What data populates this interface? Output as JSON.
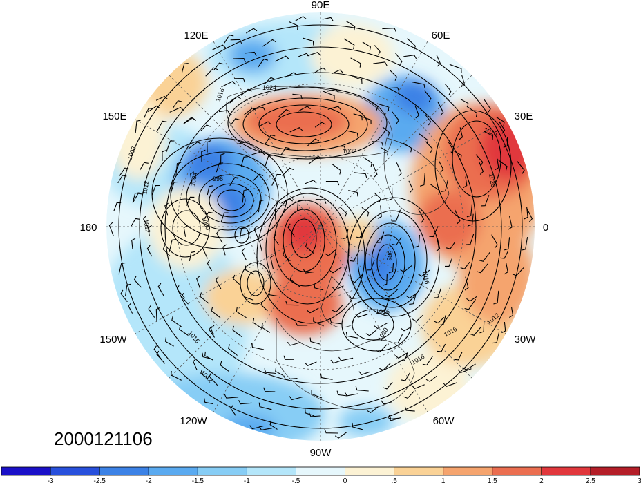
{
  "timestamp": "2000121106",
  "longitude_labels": {
    "top": "90E",
    "top_right": "60E",
    "right_upper": "30E",
    "right": "0",
    "right_lower": "30W",
    "bottom_right": "60W",
    "bottom": "90W",
    "bottom_left": "120W",
    "left_lower": "150W",
    "left": "180",
    "left_upper": "150E",
    "top_left": "120E"
  },
  "colorbar": {
    "colors": [
      "#1a10c8",
      "#2850dc",
      "#3c82e6",
      "#5aaaf0",
      "#87cdf5",
      "#b4e6fa",
      "#e6f7fc",
      "#fcf2d4",
      "#fad296",
      "#f5a46e",
      "#eb6e50",
      "#e1373c",
      "#b41e28"
    ],
    "ticks": [
      "-3",
      "-2.5",
      "-2",
      "-1.5",
      "-1",
      "-.5",
      "0",
      ".5",
      "1",
      "1.5",
      "2",
      "2.5",
      "3"
    ]
  },
  "contour_labels": [
    "1024",
    "1016",
    "1032",
    "1016",
    "1008",
    "1012",
    "1012",
    "1004",
    "996",
    "1000",
    "988",
    "1016",
    "1016",
    "1020",
    "1016",
    "1016",
    "1012",
    "1016",
    "1012",
    "1020"
  ],
  "colors": {
    "map_bg": "#e6f7fc",
    "contour": "#000000",
    "wind_barb": "#000000"
  }
}
